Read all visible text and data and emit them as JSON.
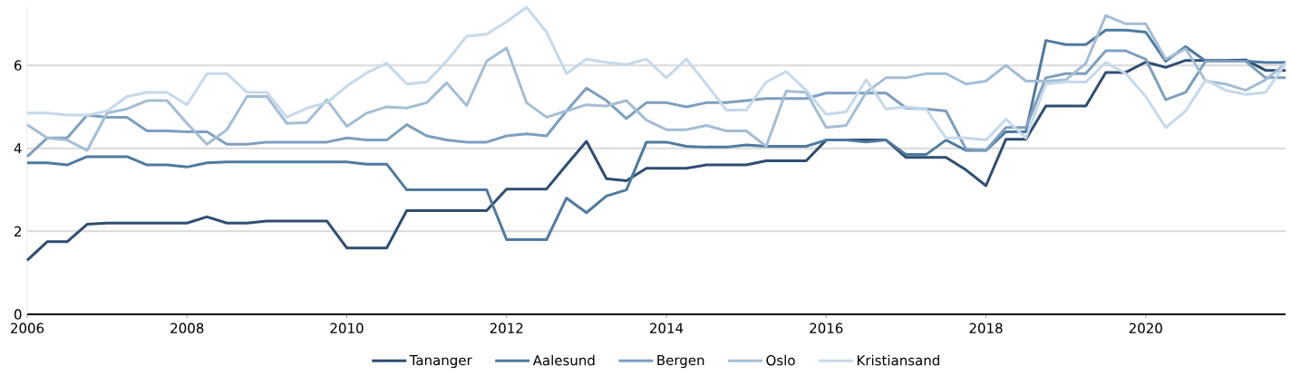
{
  "chart_data": {
    "type": "line",
    "x": [
      2006,
      2006.25,
      2006.5,
      2006.75,
      2007,
      2007.25,
      2007.5,
      2007.75,
      2008,
      2008.25,
      2008.5,
      2008.75,
      2009,
      2009.25,
      2009.5,
      2009.75,
      2010,
      2010.25,
      2010.5,
      2010.75,
      2011,
      2011.25,
      2011.5,
      2011.75,
      2012,
      2012.25,
      2012.5,
      2012.75,
      2013,
      2013.25,
      2013.5,
      2013.75,
      2014,
      2014.25,
      2014.5,
      2014.75,
      2015,
      2015.25,
      2015.5,
      2015.75,
      2016,
      2016.25,
      2016.5,
      2016.75,
      2017,
      2017.25,
      2017.5,
      2017.75,
      2018,
      2018.25,
      2018.5,
      2018.75,
      2019,
      2019.25,
      2019.5,
      2019.75,
      2020,
      2020.25,
      2020.5,
      2020.75,
      2021,
      2021.25,
      2021.5,
      2021.75
    ],
    "series": [
      {
        "name": "Tananger",
        "color": "#2e4e72",
        "values": [
          1.3,
          1.75,
          1.75,
          2.17,
          2.2,
          2.2,
          2.2,
          2.2,
          2.2,
          2.35,
          2.2,
          2.2,
          2.25,
          2.25,
          2.25,
          2.25,
          1.6,
          1.6,
          1.6,
          2.5,
          2.5,
          2.5,
          2.5,
          2.5,
          3.02,
          3.02,
          3.02,
          3.6,
          4.17,
          3.27,
          3.22,
          3.52,
          3.52,
          3.52,
          3.6,
          3.6,
          3.6,
          3.7,
          3.7,
          3.7,
          4.2,
          4.2,
          4.2,
          4.2,
          3.78,
          3.78,
          3.78,
          3.48,
          3.1,
          4.22,
          4.22,
          5.02,
          5.02,
          5.02,
          5.83,
          5.83,
          6.08,
          5.95,
          6.12,
          6.12,
          6.12,
          6.13,
          5.88,
          5.88
        ]
      },
      {
        "name": "Aalesund",
        "color": "#4f7aa0",
        "values": [
          3.65,
          3.65,
          3.6,
          3.8,
          3.8,
          3.8,
          3.6,
          3.6,
          3.55,
          3.65,
          3.67,
          3.67,
          3.67,
          3.67,
          3.67,
          3.67,
          3.67,
          3.62,
          3.62,
          3.0,
          3.0,
          3.0,
          3.0,
          3.0,
          1.8,
          1.8,
          1.8,
          2.8,
          2.45,
          2.85,
          3.0,
          4.15,
          4.15,
          4.05,
          4.03,
          4.03,
          4.08,
          4.05,
          4.05,
          4.05,
          4.2,
          4.2,
          4.15,
          4.2,
          3.85,
          3.85,
          4.2,
          3.95,
          3.95,
          4.4,
          4.4,
          6.6,
          6.5,
          6.5,
          6.85,
          6.85,
          6.8,
          6.1,
          6.45,
          6.1,
          6.1,
          6.1,
          6.07,
          6.07
        ]
      },
      {
        "name": "Bergen",
        "color": "#7d9fbf",
        "values": [
          3.8,
          4.25,
          4.25,
          4.8,
          4.75,
          4.75,
          4.42,
          4.42,
          4.4,
          4.4,
          4.1,
          4.1,
          4.15,
          4.15,
          4.15,
          4.15,
          4.25,
          4.2,
          4.2,
          4.57,
          4.3,
          4.2,
          4.15,
          4.15,
          4.3,
          4.35,
          4.3,
          4.9,
          5.45,
          5.15,
          4.72,
          5.1,
          5.1,
          5.0,
          5.1,
          5.1,
          5.15,
          5.2,
          5.2,
          5.2,
          5.33,
          5.33,
          5.33,
          5.33,
          4.97,
          4.95,
          4.9,
          3.98,
          3.95,
          4.5,
          4.5,
          5.7,
          5.8,
          5.8,
          6.35,
          6.35,
          6.15,
          5.17,
          5.35,
          6.1,
          6.1,
          6.1,
          5.7,
          5.7
        ]
      },
      {
        "name": "Oslo",
        "color": "#a3bdd5",
        "values": [
          4.57,
          4.25,
          4.2,
          3.95,
          4.85,
          4.95,
          5.15,
          5.15,
          4.6,
          4.1,
          4.45,
          5.25,
          5.25,
          4.6,
          4.62,
          5.17,
          4.53,
          4.85,
          5.0,
          4.97,
          5.1,
          5.58,
          5.03,
          6.1,
          6.42,
          5.1,
          4.75,
          4.9,
          5.05,
          5.02,
          5.15,
          4.68,
          4.45,
          4.45,
          4.55,
          4.42,
          4.42,
          4.05,
          5.38,
          5.35,
          4.5,
          4.55,
          5.35,
          5.7,
          5.7,
          5.8,
          5.8,
          5.55,
          5.62,
          6.0,
          5.62,
          5.62,
          5.65,
          6.05,
          7.2,
          7.0,
          7.0,
          6.15,
          6.4,
          5.62,
          5.55,
          5.4,
          5.65,
          6.05
        ]
      },
      {
        "name": "Kristiansand",
        "color": "#c5d9ea",
        "values": [
          4.85,
          4.85,
          4.8,
          4.8,
          4.9,
          5.25,
          5.35,
          5.35,
          5.05,
          5.8,
          5.8,
          5.35,
          5.35,
          4.75,
          4.97,
          5.1,
          5.5,
          5.82,
          6.05,
          5.55,
          5.6,
          6.1,
          6.7,
          6.75,
          7.05,
          7.4,
          6.8,
          5.8,
          6.15,
          6.07,
          6.02,
          6.15,
          5.7,
          6.15,
          5.55,
          4.92,
          4.92,
          5.6,
          5.85,
          5.4,
          4.82,
          4.88,
          5.65,
          4.95,
          5.0,
          4.95,
          4.25,
          4.25,
          4.2,
          4.7,
          4.25,
          5.55,
          5.6,
          5.6,
          6.07,
          5.8,
          5.25,
          4.5,
          4.9,
          5.65,
          5.4,
          5.3,
          5.35,
          6.05
        ]
      }
    ],
    "xlim": [
      2006,
      2021.75
    ],
    "ylim": [
      0,
      7.4
    ],
    "xticks": [
      2006,
      2008,
      2010,
      2012,
      2014,
      2016,
      2018,
      2020
    ],
    "yticks": [
      0,
      2,
      4,
      6
    ],
    "grid": "y",
    "legend": "bottom",
    "marker": "none",
    "line_style": "solid"
  }
}
